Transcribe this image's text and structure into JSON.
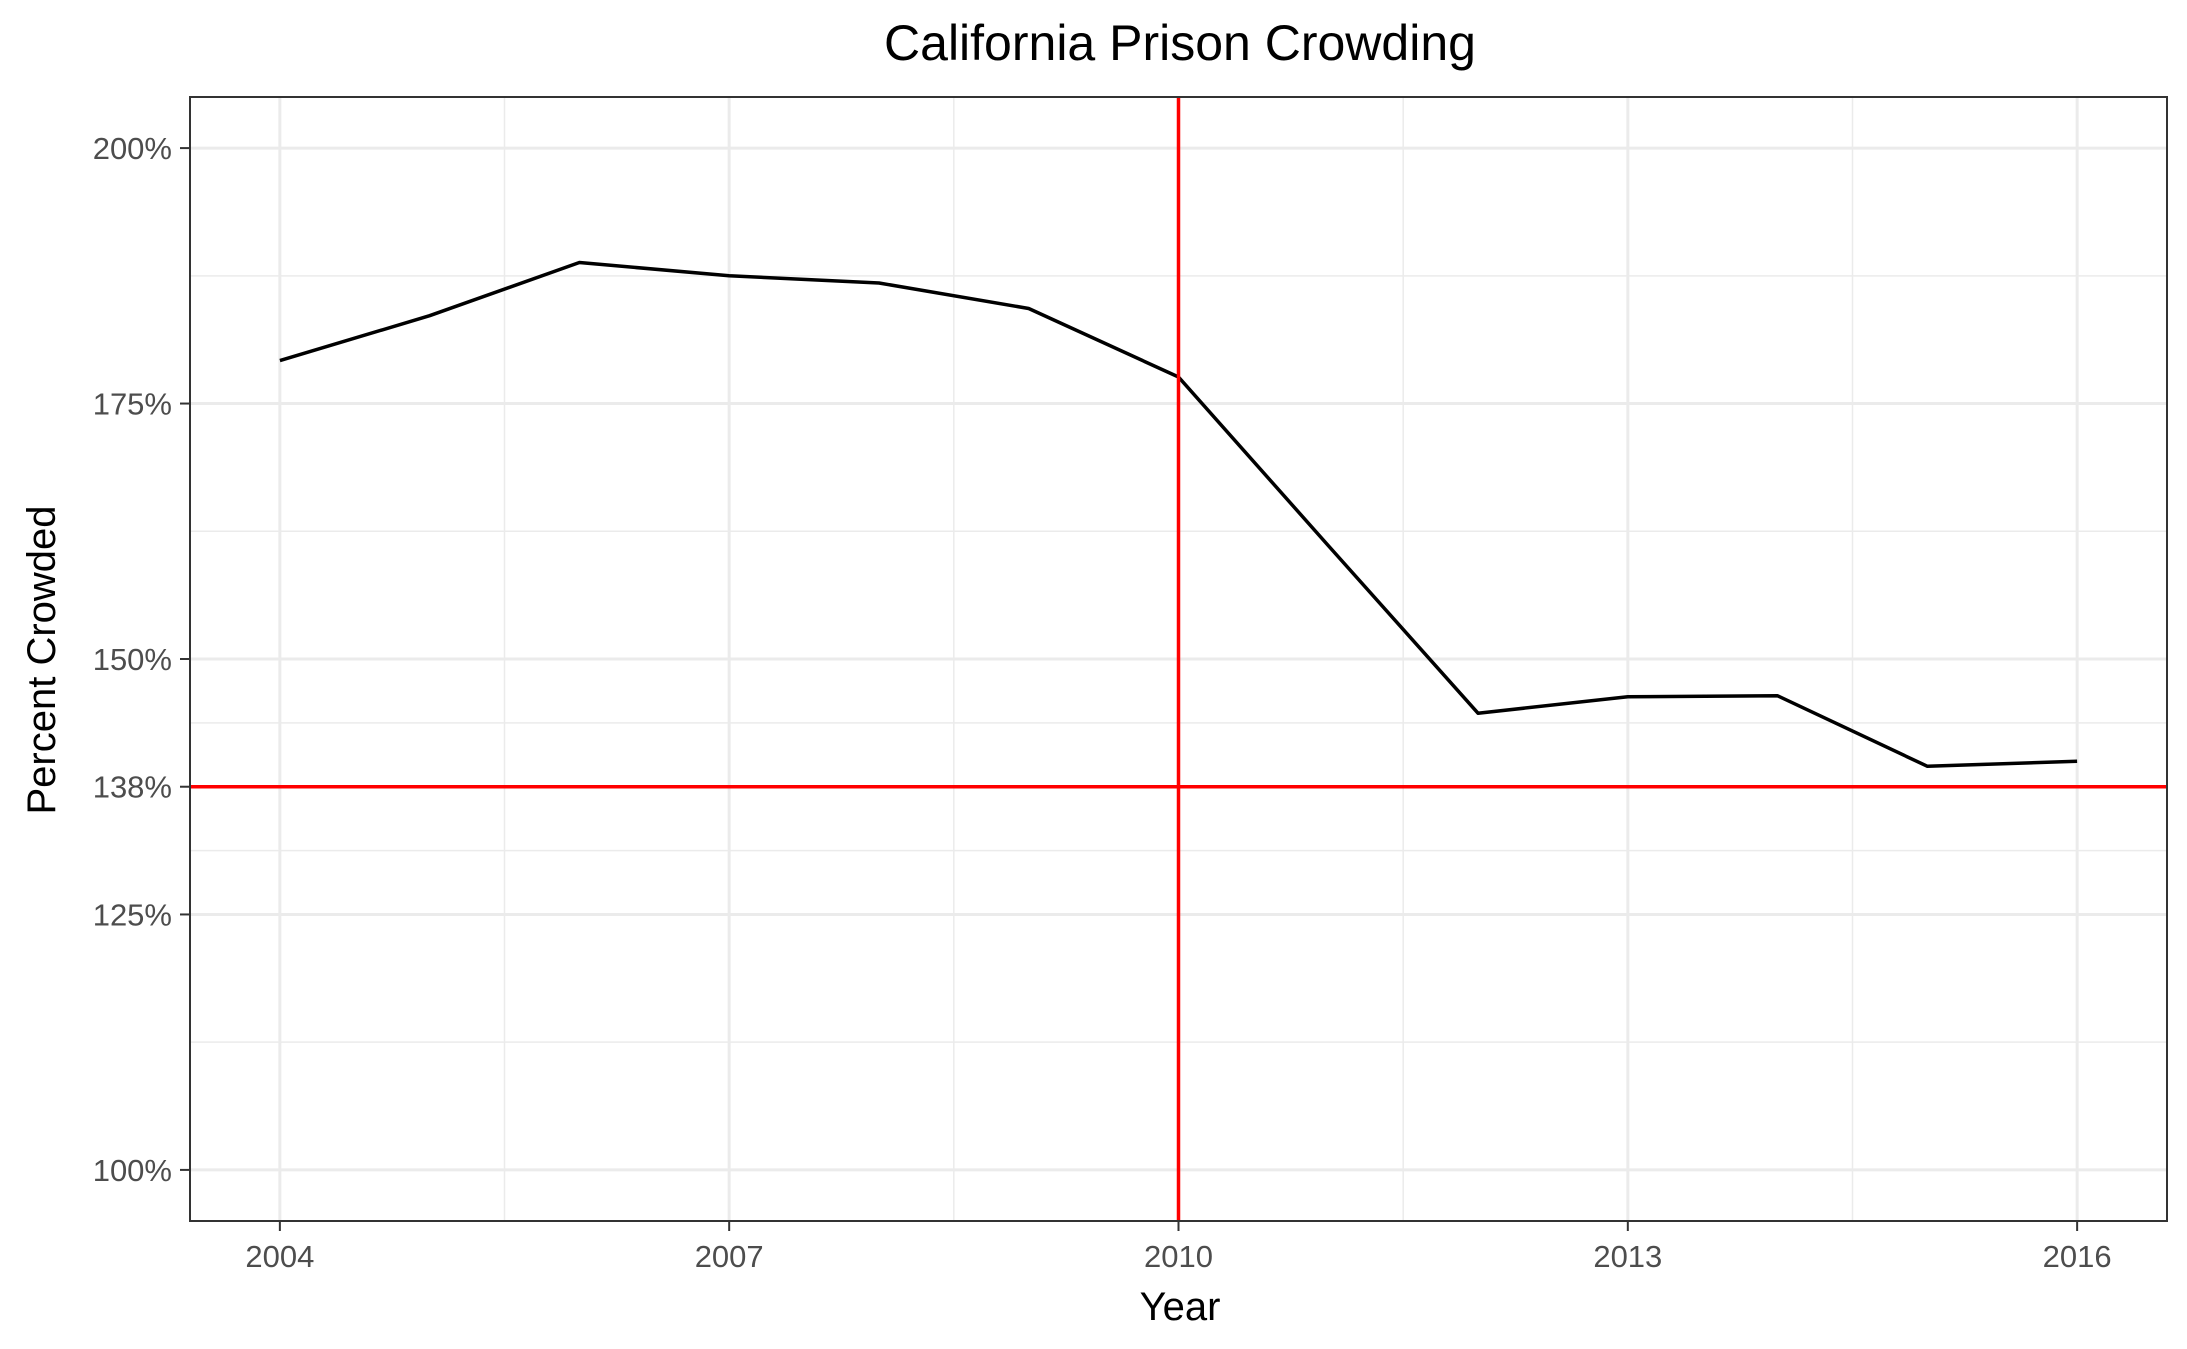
{
  "chart_data": {
    "type": "line",
    "title": "California Prison Crowding",
    "xlabel": "Year",
    "ylabel": "Percent Crowded",
    "x_ticks": [
      2004,
      2007,
      2010,
      2013,
      2016
    ],
    "x_tick_labels": [
      "2004",
      "2007",
      "2010",
      "2013",
      "2016"
    ],
    "y_ticks": [
      100,
      125,
      137.5,
      150,
      175,
      200
    ],
    "y_tick_labels": [
      "100%",
      "125%",
      "138%",
      "150%",
      "175%",
      "200%"
    ],
    "xlim": [
      2003.4,
      2016.6
    ],
    "ylim": [
      95,
      205
    ],
    "grid": true,
    "series": [
      {
        "color": "#000000",
        "x": [
          2004,
          2005,
          2006,
          2007,
          2008,
          2009,
          2010,
          2011,
          2012,
          2013,
          2014,
          2015,
          2016
        ],
        "values": [
          179.2,
          183.6,
          188.8,
          187.5,
          186.8,
          184.3,
          177.6,
          161.1,
          144.7,
          146.3,
          146.4,
          139.5,
          140.0
        ]
      }
    ],
    "reference_lines": [
      {
        "orientation": "vertical",
        "value": 2010,
        "color": "#ff0000"
      },
      {
        "orientation": "horizontal",
        "value": 137.5,
        "color": "#ff0000"
      }
    ]
  }
}
